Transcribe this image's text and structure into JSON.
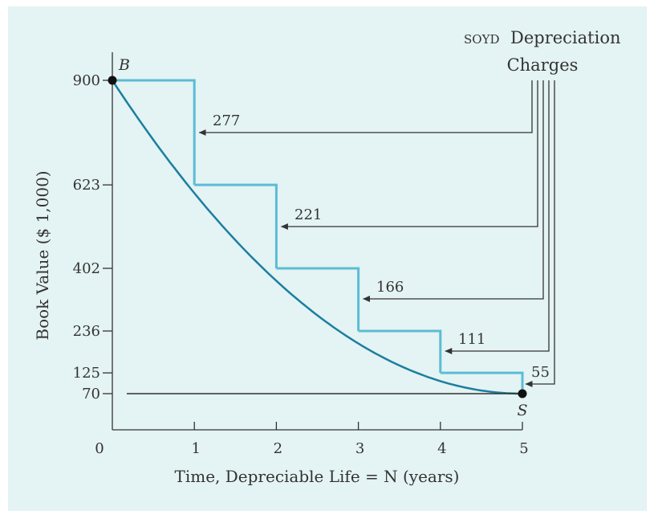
{
  "chart_data": {
    "type": "line",
    "title": "",
    "xlabel": "Time, Depreciable Life = N (years)",
    "ylabel": "Book Value ($ 1,000)",
    "x_ticks": [
      "0",
      "1",
      "2",
      "3",
      "4",
      "5"
    ],
    "y_ticks": [
      "900",
      "623",
      "402",
      "236",
      "125",
      "70"
    ],
    "xlim": [
      0,
      5
    ],
    "book_values": [
      {
        "year": 0,
        "value": 900
      },
      {
        "year": 1,
        "value": 623
      },
      {
        "year": 2,
        "value": 402
      },
      {
        "year": 3,
        "value": 236
      },
      {
        "year": 4,
        "value": 125
      },
      {
        "year": 5,
        "value": 70
      }
    ],
    "salvage_value": 70,
    "start_point_label": "B",
    "end_point_label": "S",
    "charges_caption_prefix": "SOYD",
    "charges_caption_suffix": "Depreciation",
    "charges_caption_line2": "Charges",
    "depreciation_charges": [
      {
        "year": 1,
        "charge": 277,
        "label": "277"
      },
      {
        "year": 2,
        "charge": 221,
        "label": "221"
      },
      {
        "year": 3,
        "charge": 166,
        "label": "166"
      },
      {
        "year": 4,
        "charge": 111,
        "label": "111"
      },
      {
        "year": 5,
        "charge": 55,
        "label": "55"
      }
    ],
    "colors": {
      "curve": "#1b7fa0",
      "steps": "#5bbcd6",
      "axes": "#333333",
      "background": "#e4f3f3"
    }
  }
}
